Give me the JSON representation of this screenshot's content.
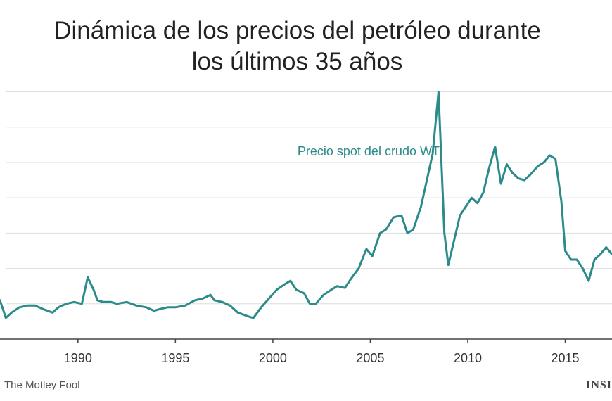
{
  "title_line1": "Dinámica de los precios del petróleo durante",
  "title_line2": "los últimos 35 años",
  "source": "The Motley Fool",
  "logo_text": "INSI",
  "colors": {
    "line": "#2b8a8a",
    "grid": "#dddddd",
    "text": "#222222"
  },
  "chart_data": {
    "type": "line",
    "title": "Dinámica de los precios del petróleo durante los últimos 35 años",
    "xlabel": "",
    "ylabel": "",
    "xlim": [
      1986,
      2017.4
    ],
    "ylim": [
      0,
      145
    ],
    "x_ticks": [
      1990,
      1995,
      2000,
      2005,
      2010,
      2015
    ],
    "y_gridlines": [
      20,
      40,
      60,
      80,
      100,
      120,
      140
    ],
    "grid": true,
    "series": [
      {
        "name": "Precio spot del crudo WTI",
        "x": [
          1986,
          1986.3,
          1986.6,
          1987,
          1987.4,
          1987.8,
          1988.2,
          1988.7,
          1989,
          1989.4,
          1989.8,
          1990.2,
          1990.5,
          1990.8,
          1991,
          1991.3,
          1991.7,
          1992,
          1992.5,
          1993,
          1993.5,
          1993.9,
          1994.2,
          1994.6,
          1995,
          1995.5,
          1996,
          1996.4,
          1996.8,
          1997,
          1997.4,
          1997.8,
          1998.2,
          1998.7,
          1999,
          1999.4,
          1999.8,
          2000.2,
          2000.6,
          2000.9,
          2001.2,
          2001.6,
          2001.9,
          2002.2,
          2002.6,
          2003,
          2003.3,
          2003.7,
          2004,
          2004.4,
          2004.8,
          2005.1,
          2005.5,
          2005.8,
          2006.2,
          2006.6,
          2006.9,
          2007.2,
          2007.6,
          2007.9,
          2008.2,
          2008.5,
          2008.8,
          2009,
          2009.3,
          2009.6,
          2009.9,
          2010.2,
          2010.5,
          2010.8,
          2011.1,
          2011.4,
          2011.7,
          2012,
          2012.3,
          2012.6,
          2012.9,
          2013.2,
          2013.6,
          2013.9,
          2014.2,
          2014.5,
          2014.8,
          2015,
          2015.3,
          2015.6,
          2015.9,
          2016.2,
          2016.5,
          2016.8,
          2017.1,
          2017.4
        ],
        "y": [
          22,
          12,
          15,
          18,
          19,
          19,
          17,
          15,
          18,
          20,
          21,
          20,
          35,
          28,
          22,
          21,
          21,
          20,
          21,
          19,
          18,
          16,
          17,
          18,
          18,
          19,
          22,
          23,
          25,
          22,
          21,
          19,
          15,
          13,
          12,
          18,
          23,
          28,
          31,
          33,
          28,
          26,
          20,
          20,
          25,
          28,
          30,
          29,
          34,
          40,
          51,
          47,
          60,
          62,
          69,
          70,
          60,
          62,
          75,
          90,
          105,
          140,
          60,
          42,
          56,
          70,
          75,
          80,
          77,
          83,
          97,
          109,
          88,
          99,
          94,
          91,
          90,
          93,
          98,
          100,
          104,
          102,
          78,
          50,
          45,
          45,
          40,
          33,
          45,
          48,
          52,
          48
        ]
      }
    ],
    "annotations": [
      {
        "text": "Precio spot del crudo WTI",
        "x": 2005,
        "y": 104
      }
    ]
  }
}
